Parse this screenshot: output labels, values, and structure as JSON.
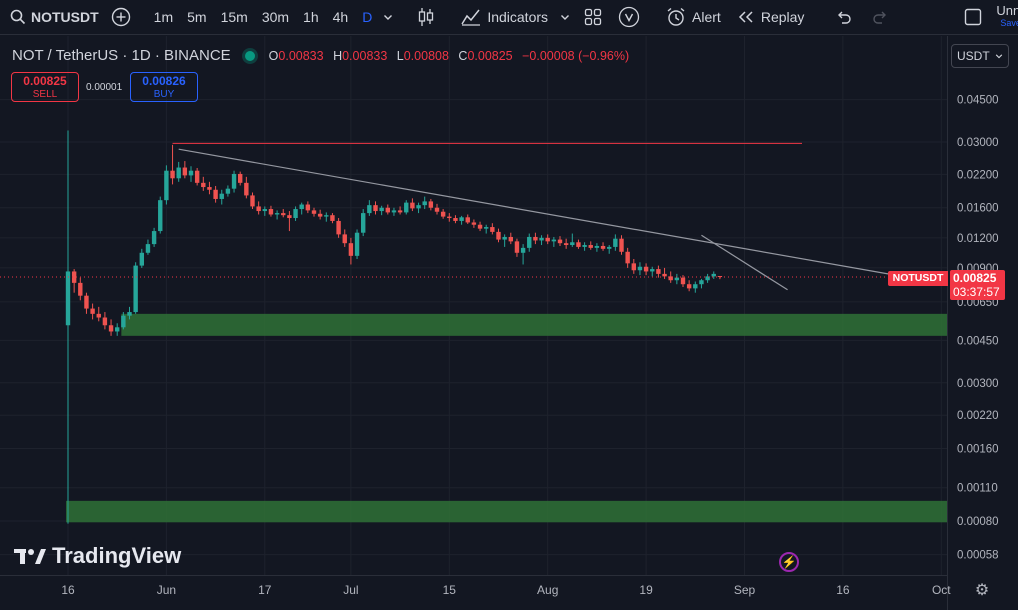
{
  "toolbar": {
    "symbol": "NOTUSDT",
    "timeframes": [
      "1m",
      "5m",
      "15m",
      "30m",
      "1h",
      "4h",
      "D"
    ],
    "active_timeframe": "D",
    "indicators_label": "Indicators",
    "alert_label": "Alert",
    "replay_label": "Replay",
    "layout_name": "Unna",
    "save_label": "Save"
  },
  "legend": {
    "title": "NOT / TetherUS · 1D · BINANCE",
    "open_label": "O",
    "open": "0.00833",
    "high_label": "H",
    "high": "0.00833",
    "low_label": "L",
    "low": "0.00808",
    "close_label": "C",
    "close": "0.00825",
    "change": "−0.00008 (−0.96%)"
  },
  "trade": {
    "sell_price": "0.00825",
    "sell_label": "SELL",
    "spread": "0.00001",
    "buy_price": "0.00826",
    "buy_label": "BUY"
  },
  "price_scale": {
    "currency": "USDT",
    "symbol_tag": "NOTUSDT",
    "last_price": "0.00825",
    "countdown": "03:37:57"
  },
  "brand": {
    "name": "TradingView"
  },
  "colors": {
    "up": "#26a69a",
    "down": "#ef5350",
    "zone": "#2e6b35",
    "resistance": "#f23645",
    "trend": "#9598a1",
    "background": "#131722"
  },
  "chart_data": {
    "type": "candlestick",
    "y_scale": "log",
    "y_ticks": [
      "0.04500",
      "0.03000",
      "0.02200",
      "0.01600",
      "0.01200",
      "0.00900",
      "0.00650",
      "0.00450",
      "0.00300",
      "0.00220",
      "0.00160",
      "0.00110",
      "0.00080",
      "0.00058"
    ],
    "y_tick_values": [
      0.045,
      0.03,
      0.022,
      0.016,
      0.012,
      0.009,
      0.0065,
      0.0045,
      0.003,
      0.0022,
      0.0016,
      0.0011,
      0.0008,
      0.00058
    ],
    "x_ticks": [
      "16",
      "Jun",
      "17",
      "Jul",
      "15",
      "Aug",
      "19",
      "Sep",
      "16",
      "Oct"
    ],
    "x_tick_days": [
      0,
      16,
      32,
      46,
      62,
      78,
      94,
      110,
      126,
      142
    ],
    "last_price": 0.00825,
    "resistance_level": 0.0296,
    "zones": [
      {
        "from": 0.0047,
        "to": 0.0058
      },
      {
        "from": 0.00079,
        "to": 0.00097
      }
    ],
    "trendlines": [
      {
        "from": {
          "day": 18,
          "price": 0.028
        },
        "to": {
          "day": 137,
          "price": 0.0085
        }
      },
      {
        "from": {
          "day": 103,
          "price": 0.0123
        },
        "to": {
          "day": 117,
          "price": 0.0073
        }
      }
    ],
    "candles": [
      {
        "o": 0.0052,
        "h": 0.0335,
        "l": 0.00078,
        "c": 0.0087
      },
      {
        "o": 0.0087,
        "h": 0.0089,
        "l": 0.0071,
        "c": 0.0078
      },
      {
        "o": 0.0078,
        "h": 0.0082,
        "l": 0.0066,
        "c": 0.0069
      },
      {
        "o": 0.0069,
        "h": 0.0071,
        "l": 0.0058,
        "c": 0.0061
      },
      {
        "o": 0.0061,
        "h": 0.0064,
        "l": 0.0055,
        "c": 0.0058
      },
      {
        "o": 0.0058,
        "h": 0.0062,
        "l": 0.0054,
        "c": 0.0056
      },
      {
        "o": 0.0056,
        "h": 0.0059,
        "l": 0.005,
        "c": 0.0052
      },
      {
        "o": 0.0052,
        "h": 0.0055,
        "l": 0.0047,
        "c": 0.0049
      },
      {
        "o": 0.0049,
        "h": 0.0053,
        "l": 0.0047,
        "c": 0.0051
      },
      {
        "o": 0.0051,
        "h": 0.0059,
        "l": 0.005,
        "c": 0.0057
      },
      {
        "o": 0.0057,
        "h": 0.0062,
        "l": 0.0055,
        "c": 0.0059
      },
      {
        "o": 0.0059,
        "h": 0.0095,
        "l": 0.0058,
        "c": 0.0092
      },
      {
        "o": 0.0092,
        "h": 0.0108,
        "l": 0.009,
        "c": 0.0104
      },
      {
        "o": 0.0104,
        "h": 0.0118,
        "l": 0.0102,
        "c": 0.0113
      },
      {
        "o": 0.0113,
        "h": 0.0132,
        "l": 0.011,
        "c": 0.0128
      },
      {
        "o": 0.0128,
        "h": 0.0178,
        "l": 0.0125,
        "c": 0.0172
      },
      {
        "o": 0.0172,
        "h": 0.024,
        "l": 0.0165,
        "c": 0.0228
      },
      {
        "o": 0.0228,
        "h": 0.0292,
        "l": 0.02,
        "c": 0.0212
      },
      {
        "o": 0.0212,
        "h": 0.0248,
        "l": 0.0205,
        "c": 0.0235
      },
      {
        "o": 0.0235,
        "h": 0.025,
        "l": 0.0212,
        "c": 0.0218
      },
      {
        "o": 0.0218,
        "h": 0.0238,
        "l": 0.0205,
        "c": 0.0228
      },
      {
        "o": 0.0228,
        "h": 0.0234,
        "l": 0.0198,
        "c": 0.0203
      },
      {
        "o": 0.0203,
        "h": 0.0215,
        "l": 0.0188,
        "c": 0.0195
      },
      {
        "o": 0.0195,
        "h": 0.0205,
        "l": 0.0182,
        "c": 0.019
      },
      {
        "o": 0.019,
        "h": 0.0197,
        "l": 0.0168,
        "c": 0.0174
      },
      {
        "o": 0.0174,
        "h": 0.019,
        "l": 0.0165,
        "c": 0.0183
      },
      {
        "o": 0.0183,
        "h": 0.0198,
        "l": 0.0178,
        "c": 0.0192
      },
      {
        "o": 0.0192,
        "h": 0.0228,
        "l": 0.0185,
        "c": 0.0221
      },
      {
        "o": 0.0221,
        "h": 0.0226,
        "l": 0.0198,
        "c": 0.0203
      },
      {
        "o": 0.0203,
        "h": 0.0215,
        "l": 0.0175,
        "c": 0.018
      },
      {
        "o": 0.018,
        "h": 0.0185,
        "l": 0.0158,
        "c": 0.0162
      },
      {
        "o": 0.0162,
        "h": 0.017,
        "l": 0.015,
        "c": 0.0155
      },
      {
        "o": 0.0155,
        "h": 0.0162,
        "l": 0.0148,
        "c": 0.0158
      },
      {
        "o": 0.0158,
        "h": 0.0163,
        "l": 0.0147,
        "c": 0.015
      },
      {
        "o": 0.015,
        "h": 0.0156,
        "l": 0.0143,
        "c": 0.0152
      },
      {
        "o": 0.0152,
        "h": 0.0158,
        "l": 0.0146,
        "c": 0.0149
      },
      {
        "o": 0.0149,
        "h": 0.0155,
        "l": 0.0128,
        "c": 0.0145
      },
      {
        "o": 0.0145,
        "h": 0.0162,
        "l": 0.0141,
        "c": 0.0158
      },
      {
        "o": 0.0158,
        "h": 0.0168,
        "l": 0.015,
        "c": 0.0165
      },
      {
        "o": 0.0165,
        "h": 0.017,
        "l": 0.0152,
        "c": 0.0156
      },
      {
        "o": 0.0156,
        "h": 0.016,
        "l": 0.0147,
        "c": 0.0151
      },
      {
        "o": 0.0151,
        "h": 0.0157,
        "l": 0.0143,
        "c": 0.0147
      },
      {
        "o": 0.0147,
        "h": 0.0153,
        "l": 0.014,
        "c": 0.0149
      },
      {
        "o": 0.0149,
        "h": 0.0152,
        "l": 0.0138,
        "c": 0.0141
      },
      {
        "o": 0.0141,
        "h": 0.0145,
        "l": 0.012,
        "c": 0.0124
      },
      {
        "o": 0.0124,
        "h": 0.013,
        "l": 0.011,
        "c": 0.0114
      },
      {
        "o": 0.0114,
        "h": 0.012,
        "l": 0.0093,
        "c": 0.0101
      },
      {
        "o": 0.0101,
        "h": 0.013,
        "l": 0.0098,
        "c": 0.0126
      },
      {
        "o": 0.0126,
        "h": 0.0158,
        "l": 0.0122,
        "c": 0.0152
      },
      {
        "o": 0.0152,
        "h": 0.0172,
        "l": 0.0148,
        "c": 0.0164
      },
      {
        "o": 0.0164,
        "h": 0.017,
        "l": 0.015,
        "c": 0.0155
      },
      {
        "o": 0.0155,
        "h": 0.0163,
        "l": 0.0149,
        "c": 0.016
      },
      {
        "o": 0.016,
        "h": 0.0165,
        "l": 0.015,
        "c": 0.0153
      },
      {
        "o": 0.0153,
        "h": 0.016,
        "l": 0.0148,
        "c": 0.0156
      },
      {
        "o": 0.0156,
        "h": 0.0162,
        "l": 0.015,
        "c": 0.0153
      },
      {
        "o": 0.0153,
        "h": 0.0172,
        "l": 0.015,
        "c": 0.0168
      },
      {
        "o": 0.0168,
        "h": 0.0175,
        "l": 0.0155,
        "c": 0.0159
      },
      {
        "o": 0.0159,
        "h": 0.0168,
        "l": 0.0152,
        "c": 0.0164
      },
      {
        "o": 0.0164,
        "h": 0.0178,
        "l": 0.0158,
        "c": 0.017
      },
      {
        "o": 0.017,
        "h": 0.0174,
        "l": 0.0156,
        "c": 0.016
      },
      {
        "o": 0.016,
        "h": 0.0166,
        "l": 0.015,
        "c": 0.0154
      },
      {
        "o": 0.0154,
        "h": 0.0158,
        "l": 0.0144,
        "c": 0.0147
      },
      {
        "o": 0.0147,
        "h": 0.0152,
        "l": 0.014,
        "c": 0.0145
      },
      {
        "o": 0.0145,
        "h": 0.0149,
        "l": 0.0138,
        "c": 0.0141
      },
      {
        "o": 0.0141,
        "h": 0.0148,
        "l": 0.0136,
        "c": 0.0146
      },
      {
        "o": 0.0146,
        "h": 0.015,
        "l": 0.0137,
        "c": 0.0139
      },
      {
        "o": 0.0139,
        "h": 0.0143,
        "l": 0.0132,
        "c": 0.0136
      },
      {
        "o": 0.0136,
        "h": 0.014,
        "l": 0.0128,
        "c": 0.0131
      },
      {
        "o": 0.0131,
        "h": 0.0136,
        "l": 0.0125,
        "c": 0.0133
      },
      {
        "o": 0.0133,
        "h": 0.0138,
        "l": 0.0124,
        "c": 0.0127
      },
      {
        "o": 0.0127,
        "h": 0.0131,
        "l": 0.0115,
        "c": 0.0118
      },
      {
        "o": 0.0118,
        "h": 0.0124,
        "l": 0.011,
        "c": 0.0121
      },
      {
        "o": 0.0121,
        "h": 0.0126,
        "l": 0.0113,
        "c": 0.0116
      },
      {
        "o": 0.0116,
        "h": 0.0119,
        "l": 0.01,
        "c": 0.0104
      },
      {
        "o": 0.0104,
        "h": 0.0113,
        "l": 0.0093,
        "c": 0.0109
      },
      {
        "o": 0.0109,
        "h": 0.0125,
        "l": 0.0105,
        "c": 0.0121
      },
      {
        "o": 0.0121,
        "h": 0.0126,
        "l": 0.0113,
        "c": 0.0117
      },
      {
        "o": 0.0117,
        "h": 0.0123,
        "l": 0.0112,
        "c": 0.012
      },
      {
        "o": 0.012,
        "h": 0.0124,
        "l": 0.0113,
        "c": 0.0116
      },
      {
        "o": 0.0116,
        "h": 0.0121,
        "l": 0.011,
        "c": 0.0118
      },
      {
        "o": 0.0118,
        "h": 0.0122,
        "l": 0.0111,
        "c": 0.0114
      },
      {
        "o": 0.0114,
        "h": 0.0119,
        "l": 0.0108,
        "c": 0.0112
      },
      {
        "o": 0.0112,
        "h": 0.0125,
        "l": 0.011,
        "c": 0.0115
      },
      {
        "o": 0.0115,
        "h": 0.0118,
        "l": 0.0108,
        "c": 0.011
      },
      {
        "o": 0.011,
        "h": 0.0115,
        "l": 0.0106,
        "c": 0.0112
      },
      {
        "o": 0.0112,
        "h": 0.0116,
        "l": 0.0107,
        "c": 0.0109
      },
      {
        "o": 0.0109,
        "h": 0.0114,
        "l": 0.0105,
        "c": 0.0111
      },
      {
        "o": 0.0111,
        "h": 0.0115,
        "l": 0.0106,
        "c": 0.0108
      },
      {
        "o": 0.0108,
        "h": 0.0112,
        "l": 0.0103,
        "c": 0.011
      },
      {
        "o": 0.011,
        "h": 0.0124,
        "l": 0.0106,
        "c": 0.0119
      },
      {
        "o": 0.0119,
        "h": 0.0123,
        "l": 0.0102,
        "c": 0.0105
      },
      {
        "o": 0.0105,
        "h": 0.0109,
        "l": 0.009,
        "c": 0.0094
      },
      {
        "o": 0.0094,
        "h": 0.0098,
        "l": 0.0085,
        "c": 0.0088
      },
      {
        "o": 0.0088,
        "h": 0.0095,
        "l": 0.0084,
        "c": 0.0091
      },
      {
        "o": 0.0091,
        "h": 0.0094,
        "l": 0.0084,
        "c": 0.0087
      },
      {
        "o": 0.0087,
        "h": 0.0091,
        "l": 0.0083,
        "c": 0.0089
      },
      {
        "o": 0.0089,
        "h": 0.0092,
        "l": 0.0082,
        "c": 0.0085
      },
      {
        "o": 0.0085,
        "h": 0.009,
        "l": 0.0081,
        "c": 0.0083
      },
      {
        "o": 0.0083,
        "h": 0.0087,
        "l": 0.0078,
        "c": 0.008
      },
      {
        "o": 0.008,
        "h": 0.0085,
        "l": 0.0077,
        "c": 0.0082
      },
      {
        "o": 0.0082,
        "h": 0.0084,
        "l": 0.0075,
        "c": 0.0077
      },
      {
        "o": 0.0077,
        "h": 0.008,
        "l": 0.0072,
        "c": 0.0074
      },
      {
        "o": 0.0074,
        "h": 0.0079,
        "l": 0.0071,
        "c": 0.0077
      },
      {
        "o": 0.0077,
        "h": 0.0081,
        "l": 0.0074,
        "c": 0.008
      },
      {
        "o": 0.008,
        "h": 0.0085,
        "l": 0.0078,
        "c": 0.0083
      },
      {
        "o": 0.0083,
        "h": 0.0087,
        "l": 0.0081,
        "c": 0.0085
      },
      {
        "o": 0.00833,
        "h": 0.00833,
        "l": 0.00808,
        "c": 0.00825
      }
    ]
  }
}
